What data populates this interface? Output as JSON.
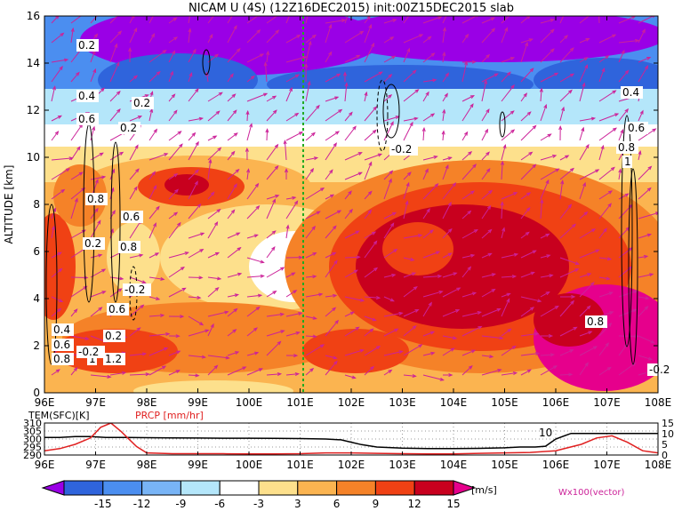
{
  "chart_data": [
    {
      "type": "heatmap",
      "title": "NICAM U (4S) (12Z16DEC2015) init:00Z15DEC2015 slab",
      "ylabel": "ALTITUDE [km]",
      "xlabel": "",
      "xlim": [
        96,
        108
      ],
      "ylim": [
        0,
        16
      ],
      "x_ticks": [
        "96E",
        "97E",
        "98E",
        "99E",
        "100E",
        "101E",
        "102E",
        "103E",
        "104E",
        "105E",
        "106E",
        "107E",
        "108E"
      ],
      "y_ticks": [
        "0",
        "2",
        "4",
        "6",
        "8",
        "10",
        "12",
        "14",
        "16"
      ],
      "reference_line_x": 101,
      "reference_line_color": "#22aa22",
      "colorbar": {
        "levels": [
          "-15",
          "-12",
          "-9",
          "-6",
          "-3",
          "3",
          "6",
          "9",
          "12",
          "15"
        ],
        "unit": "[m/s]",
        "colors": [
          "#9a00e6",
          "#2f64dc",
          "#4b8ef0",
          "#78b4f6",
          "#b4e6fa",
          "#ffffff",
          "#fde08c",
          "#fbb450",
          "#f58228",
          "#f04114",
          "#c8001e",
          "#e6008c"
        ]
      },
      "vector_label": "Wx100(vector)",
      "vector_color": "#cc2299",
      "contour_labels": [
        "0.2",
        "0.4",
        "0.6",
        "0.8",
        "0.2",
        "0.6",
        "0.8",
        "-0.2",
        "0.2",
        "0.4",
        "0.6",
        "0.8",
        "1.2",
        "1",
        "0.2",
        "0.2",
        "0.4",
        "0.6",
        "0.8",
        "1",
        "-0.2",
        "-0.2",
        "0.6",
        "0.8",
        "-0.2"
      ],
      "grid": false
    },
    {
      "type": "line",
      "xlim": [
        96,
        108
      ],
      "x_ticks": [
        "96E",
        "97E",
        "98E",
        "99E",
        "100E",
        "101E",
        "102E",
        "103E",
        "104E",
        "105E",
        "106E",
        "107E",
        "108E"
      ],
      "series": [
        {
          "name": "TEM(SFC)[K]",
          "color": "#000000",
          "axis": "left",
          "ticks": [
            "290",
            "295",
            "300",
            "305",
            "310"
          ],
          "ylim": [
            290,
            310
          ],
          "x": [
            96,
            96.3,
            96.6,
            96.9,
            97.2,
            97.6,
            98,
            98.5,
            99,
            99.5,
            100,
            100.5,
            101,
            101.5,
            101.8,
            102,
            102.2,
            102.5,
            103,
            103.5,
            104,
            104.5,
            105,
            105.3,
            105.6,
            105.8,
            106,
            106.3,
            106.8,
            107.5,
            108
          ],
          "values": [
            301,
            301,
            301.5,
            301.5,
            301,
            301,
            300.8,
            300.7,
            300.6,
            300.5,
            300.5,
            300.4,
            300.3,
            300,
            299.5,
            298,
            296.5,
            295,
            294.3,
            294,
            294,
            294.2,
            294.5,
            295,
            295,
            295.5,
            300,
            303.5,
            303.5,
            303.5,
            303.5
          ]
        },
        {
          "name": "PRCP [mm/hr]",
          "color": "#e02020",
          "axis": "right",
          "ticks": [
            "0",
            "5",
            "10",
            "15"
          ],
          "ylim": [
            0,
            15
          ],
          "x": [
            96,
            96.3,
            96.6,
            96.9,
            97.1,
            97.3,
            97.5,
            97.8,
            98,
            98.5,
            99,
            99.5,
            100,
            100.5,
            101,
            101.5,
            102,
            102.5,
            103,
            103.5,
            104,
            104.5,
            105,
            105.5,
            106,
            106.5,
            106.8,
            107.1,
            107.4,
            107.7,
            108
          ],
          "values": [
            2,
            3,
            5,
            8,
            13,
            15,
            11,
            4,
            1,
            0.6,
            0.6,
            0.6,
            0.5,
            0.5,
            0.6,
            1,
            1,
            0.8,
            0.6,
            0.5,
            0.5,
            0.8,
            1,
            1.2,
            2,
            5,
            8,
            9,
            6,
            2,
            1
          ]
        }
      ],
      "annotation": "10"
    }
  ]
}
